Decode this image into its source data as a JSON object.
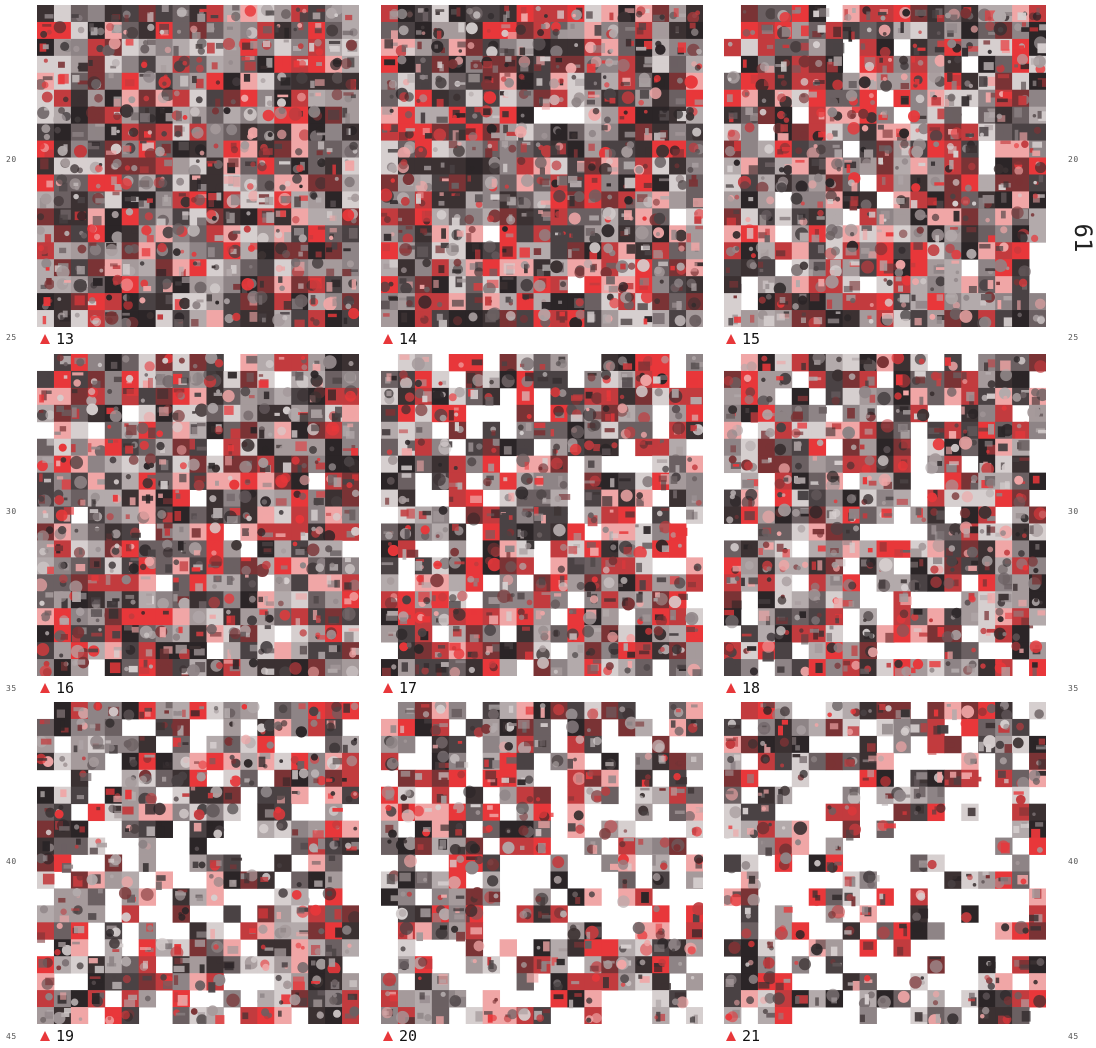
{
  "margin_numbers": {
    "left": [
      "20",
      "25",
      "30",
      "35",
      "40",
      "45"
    ],
    "right": [
      "20",
      "25",
      "30",
      "35",
      "40",
      "45"
    ]
  },
  "page_number": "61",
  "panels": [
    {
      "id": "13",
      "label": "13",
      "blanks": []
    },
    {
      "id": "14",
      "label": "14",
      "blanks": []
    },
    {
      "id": "15",
      "label": "15",
      "blanks": []
    },
    {
      "id": "16",
      "label": "16",
      "blanks": []
    },
    {
      "id": "17",
      "label": "17",
      "blanks": []
    },
    {
      "id": "18",
      "label": "18",
      "blanks": []
    },
    {
      "id": "19",
      "label": "19",
      "blanks": []
    },
    {
      "id": "20",
      "label": "20",
      "blanks": []
    },
    {
      "id": "21",
      "label": "21",
      "blanks": []
    }
  ],
  "colors": {
    "accent": "#e8373a",
    "dark": "#2a2224",
    "light": "#d9d4d2",
    "white": "#ffffff"
  }
}
